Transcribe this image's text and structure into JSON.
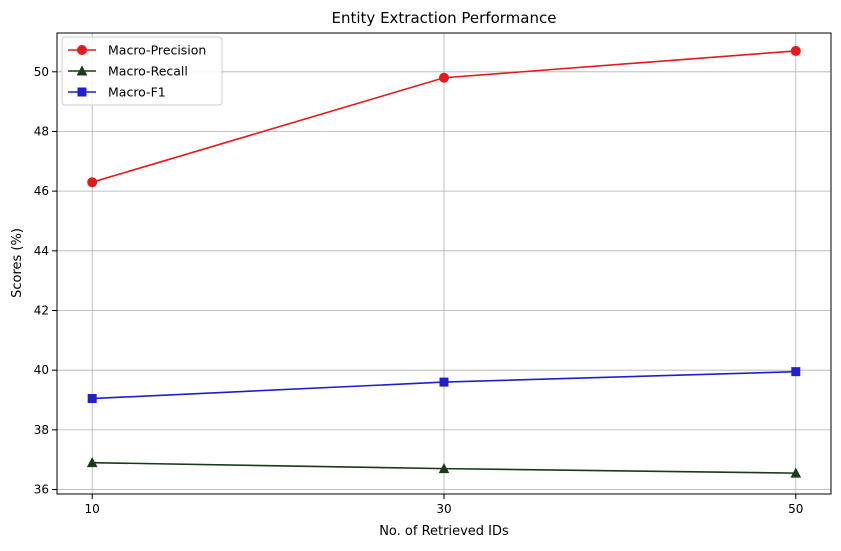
{
  "chart_data": {
    "type": "line",
    "title": "Entity Extraction Performance",
    "xlabel": "No. of Retrieved IDs",
    "ylabel": "Scores (%)",
    "x": [
      10,
      30,
      50
    ],
    "x_ticks": [
      "10",
      "30",
      "50"
    ],
    "y_ticks": [
      "36",
      "38",
      "40",
      "42",
      "44",
      "46",
      "48",
      "50"
    ],
    "xlim": [
      8,
      52
    ],
    "ylim": [
      35.85,
      51.3
    ],
    "grid": true,
    "legend_position": "top-left",
    "series": [
      {
        "name": "Macro-Precision",
        "values": [
          46.3,
          49.8,
          50.7
        ],
        "color": "#e41a1c",
        "marker": "circle"
      },
      {
        "name": "Macro-Recall",
        "values": [
          36.9,
          36.7,
          36.55
        ],
        "color": "#1a3a1a",
        "marker": "triangle"
      },
      {
        "name": "Macro-F1",
        "values": [
          39.05,
          39.6,
          39.95
        ],
        "color": "#1f1fcf",
        "marker": "square"
      }
    ]
  }
}
